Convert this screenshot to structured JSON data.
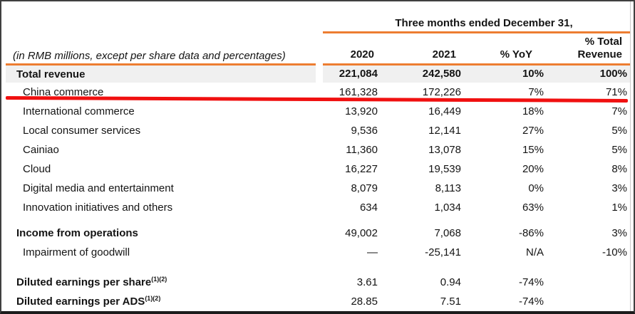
{
  "colors": {
    "accent_orange": "#ED7D31",
    "band_gray": "#F0F0F0",
    "annotation_red": "#F01010",
    "frame_border": "#3F3F3F"
  },
  "table": {
    "period_header": "Three months ended December 31,",
    "row_header_note": "(in RMB millions, except per share data and percentages)",
    "columns": [
      {
        "label": "2020"
      },
      {
        "label": "2021"
      },
      {
        "label": "% YoY"
      },
      {
        "label": "% Total",
        "label2": "Revenue"
      }
    ],
    "rows": [
      {
        "label": "Total revenue",
        "values": [
          "221,084",
          "242,580",
          "10%",
          "100%"
        ]
      },
      {
        "label": "China commerce",
        "values": [
          "161,328",
          "172,226",
          "7%",
          "71%"
        ]
      },
      {
        "label": "International commerce",
        "values": [
          "13,920",
          "16,449",
          "18%",
          "7%"
        ]
      },
      {
        "label": "Local consumer services",
        "values": [
          "9,536",
          "12,141",
          "27%",
          "5%"
        ]
      },
      {
        "label": "Cainiao",
        "values": [
          "11,360",
          "13,078",
          "15%",
          "5%"
        ]
      },
      {
        "label": "Cloud",
        "values": [
          "16,227",
          "19,539",
          "20%",
          "8%"
        ]
      },
      {
        "label": "Digital media and entertainment",
        "values": [
          "8,079",
          "8,113",
          "0%",
          "3%"
        ]
      },
      {
        "label": "Innovation initiatives and others",
        "values": [
          "634",
          "1,034",
          "63%",
          "1%"
        ]
      },
      {
        "label": "Income from operations",
        "values": [
          "49,002",
          "7,068",
          "-86%",
          "3%"
        ]
      },
      {
        "label": "Impairment of goodwill",
        "values": [
          "—",
          "-25,141",
          "N/A",
          "-10%"
        ]
      },
      {
        "label": "Diluted earnings per share",
        "superscript": "(1)(2)",
        "values": [
          "3.61",
          "0.94",
          "-74%",
          ""
        ]
      },
      {
        "label": "Diluted earnings per ADS",
        "superscript": "(1)(2)",
        "values": [
          "28.85",
          "7.51",
          "-74%",
          ""
        ]
      }
    ],
    "annotation": {
      "highlighted_row": "China commerce"
    }
  }
}
